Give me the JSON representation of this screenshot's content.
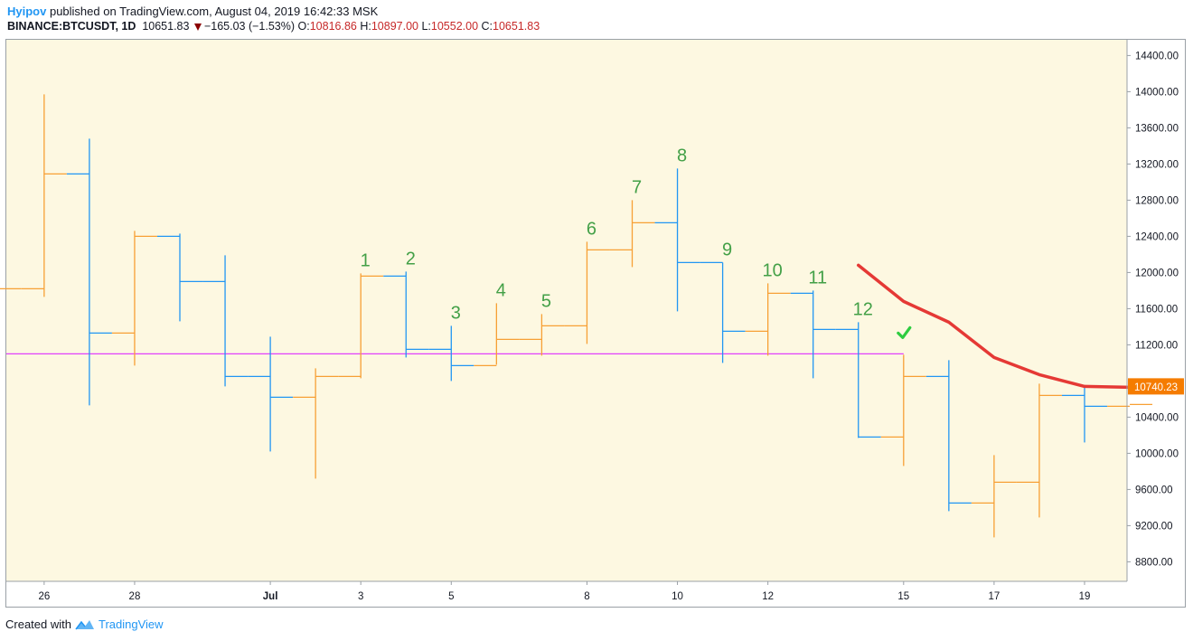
{
  "header": {
    "author": "Hyipov",
    "published_text": "published on TradingView.com, August 04, 2019 16:42:33 MSK",
    "symbol": "BINANCE:BTCUSDT, 1D",
    "last_price": "10651.83",
    "change": "−165.03 (−1.53%)",
    "o_label": "O:",
    "o_value": "10816.86",
    "h_label": "H:",
    "h_value": "10897.00",
    "l_label": "L:",
    "l_value": "10552.00",
    "c_label": "C:",
    "c_value": "10651.83"
  },
  "footer": {
    "created_with": "Created with",
    "brand": "TradingView"
  },
  "colors": {
    "background": "#fdf8e1",
    "up_bar": "#f7a035",
    "down_bar": "#2196f3",
    "count_label": "#43a047",
    "trend_line": "#e53935",
    "horizontal_line": "#e040fb",
    "price_tag": "#f57c00",
    "checkmark": "#2ecc40"
  },
  "chart_data": {
    "type": "ohlc",
    "x_tick_labels": [
      "26",
      "28",
      "Jul",
      "3",
      "5",
      "8",
      "10",
      "12",
      "15",
      "17",
      "19"
    ],
    "y_tick_labels": [
      "14400.00",
      "14000.00",
      "13600.00",
      "13200.00",
      "12800.00",
      "12400.00",
      "12000.00",
      "11600.00",
      "11200.00",
      "10400.00",
      "10000.00",
      "9600.00",
      "9200.00",
      "8800.00"
    ],
    "ylim": [
      8500,
      14600
    ],
    "bars": [
      {
        "date": "Jun 25",
        "o": 11780,
        "h": 11800,
        "l": 11750,
        "c": 11820
      },
      {
        "date": "Jun 26",
        "o": 11820,
        "h": 13970,
        "l": 11730,
        "c": 13090
      },
      {
        "date": "Jun 27",
        "o": 13090,
        "h": 13480,
        "l": 10530,
        "c": 11330
      },
      {
        "date": "Jun 28",
        "o": 11330,
        "h": 12460,
        "l": 10970,
        "c": 12400
      },
      {
        "date": "Jun 29",
        "o": 12400,
        "h": 12430,
        "l": 11460,
        "c": 11900
      },
      {
        "date": "Jun 30",
        "o": 11900,
        "h": 12190,
        "l": 10740,
        "c": 10850
      },
      {
        "date": "Jul 1",
        "o": 10850,
        "h": 11290,
        "l": 10020,
        "c": 10620
      },
      {
        "date": "Jul 2",
        "o": 10620,
        "h": 10940,
        "l": 9720,
        "c": 10850
      },
      {
        "date": "Jul 3",
        "o": 10850,
        "h": 11990,
        "l": 10830,
        "c": 11960
      },
      {
        "date": "Jul 4",
        "o": 11960,
        "h": 12010,
        "l": 11060,
        "c": 11150
      },
      {
        "date": "Jul 5",
        "o": 11150,
        "h": 11410,
        "l": 10800,
        "c": 10970
      },
      {
        "date": "Jul 6",
        "o": 10970,
        "h": 11660,
        "l": 10980,
        "c": 11260
      },
      {
        "date": "Jul 7",
        "o": 11260,
        "h": 11540,
        "l": 11080,
        "c": 11410
      },
      {
        "date": "Jul 8",
        "o": 11410,
        "h": 12340,
        "l": 11210,
        "c": 12250
      },
      {
        "date": "Jul 9",
        "o": 12250,
        "h": 12800,
        "l": 12060,
        "c": 12550
      },
      {
        "date": "Jul 10",
        "o": 12550,
        "h": 13150,
        "l": 11570,
        "c": 12110
      },
      {
        "date": "Jul 11",
        "o": 12110,
        "h": 12110,
        "l": 11000,
        "c": 11350
      },
      {
        "date": "Jul 12",
        "o": 11350,
        "h": 11880,
        "l": 11080,
        "c": 11770
      },
      {
        "date": "Jul 13",
        "o": 11770,
        "h": 11800,
        "l": 10830,
        "c": 11370
      },
      {
        "date": "Jul 14",
        "o": 11370,
        "h": 11450,
        "l": 10170,
        "c": 10180
      },
      {
        "date": "Jul 15",
        "o": 10180,
        "h": 11090,
        "l": 9860,
        "c": 10850
      },
      {
        "date": "Jul 16",
        "o": 10850,
        "h": 11030,
        "l": 9360,
        "c": 9450
      },
      {
        "date": "Jul 17",
        "o": 9450,
        "h": 9980,
        "l": 9070,
        "c": 9680
      },
      {
        "date": "Jul 18",
        "o": 9680,
        "h": 10770,
        "l": 9290,
        "c": 10640
      },
      {
        "date": "Jul 19",
        "o": 10640,
        "h": 10740,
        "l": 10120,
        "c": 10520
      },
      {
        "date": "Jul 20",
        "o": 10520,
        "h": 10520,
        "l": 10520,
        "c": 10540
      }
    ],
    "count_labels": [
      {
        "text": "1",
        "date": "Jul 3"
      },
      {
        "text": "2",
        "date": "Jul 4"
      },
      {
        "text": "3",
        "date": "Jul 5"
      },
      {
        "text": "4",
        "date": "Jul 6"
      },
      {
        "text": "5",
        "date": "Jul 7"
      },
      {
        "text": "6",
        "date": "Jul 8"
      },
      {
        "text": "7",
        "date": "Jul 9"
      },
      {
        "text": "8",
        "date": "Jul 10"
      },
      {
        "text": "9",
        "date": "Jul 11"
      },
      {
        "text": "10",
        "date": "Jul 12"
      },
      {
        "text": "11",
        "date": "Jul 13"
      },
      {
        "text": "12",
        "date": "Jul 14"
      }
    ],
    "horizontal_line": {
      "price": 11100,
      "from": "Jun 25",
      "to": "Jul 15"
    },
    "trend_line": [
      {
        "date": "Jul 14",
        "price": 12080
      },
      {
        "date": "Jul 15",
        "price": 11680
      },
      {
        "date": "Jul 16",
        "price": 11450
      },
      {
        "date": "Jul 17",
        "price": 11060
      },
      {
        "date": "Jul 18",
        "price": 10870
      },
      {
        "date": "Jul 19",
        "price": 10740
      },
      {
        "date": "Jul 20",
        "price": 10730
      }
    ],
    "checkmark": {
      "date": "Jul 15",
      "price": 11350
    },
    "price_tag": "10740.23",
    "grid": false
  }
}
